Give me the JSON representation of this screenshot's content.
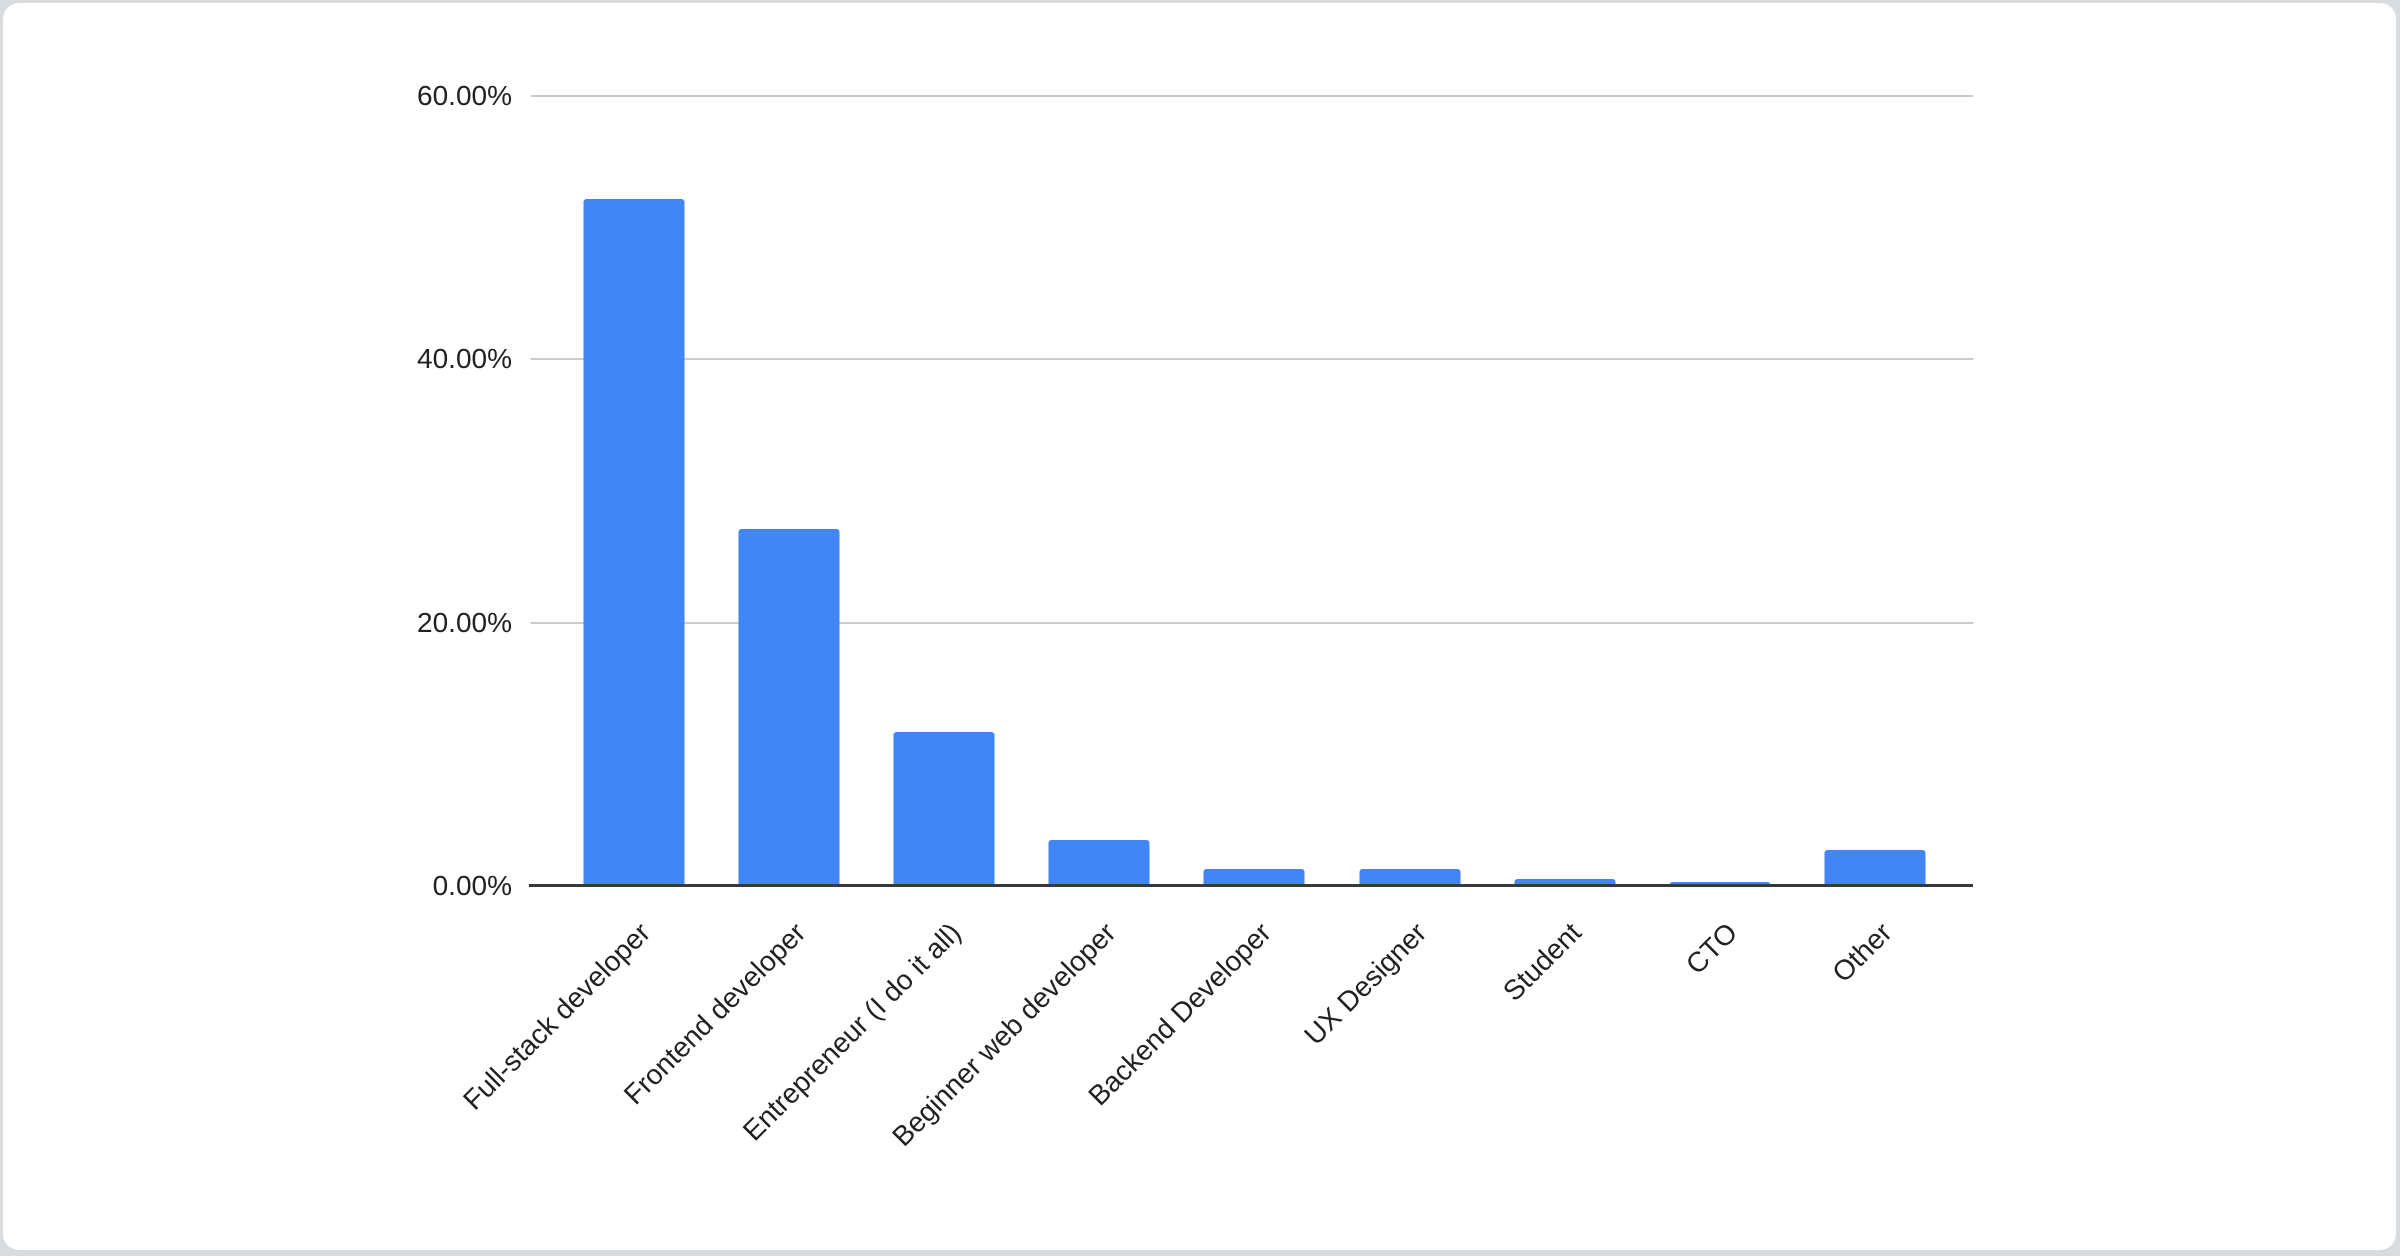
{
  "chart_data": {
    "type": "bar",
    "categories": [
      "Full-stack developer",
      "Frontend developer",
      "Entrepreneur (I do it all)",
      "Beginner web developer",
      "Backend Developer",
      "UX Designer",
      "Student",
      "CTO",
      "Other"
    ],
    "values": [
      52.2,
      27.1,
      11.7,
      3.5,
      1.3,
      1.3,
      0.5,
      0.3,
      2.7
    ],
    "value_unit": "percent",
    "ylim": [
      0,
      60
    ],
    "yticks": [
      0,
      20,
      40,
      60
    ],
    "ytick_labels": [
      "0.00%",
      "20.00%",
      "40.00%",
      "60.00%"
    ],
    "grid": true,
    "legend": false,
    "x_label_rotation_deg": -45
  },
  "colors": {
    "bar": "#4285f4",
    "gridline": "#c9cbcd",
    "axis": "#37393b",
    "text": "#202124",
    "card_bg": "#ffffff",
    "page_bg": "#d9dcdf"
  }
}
